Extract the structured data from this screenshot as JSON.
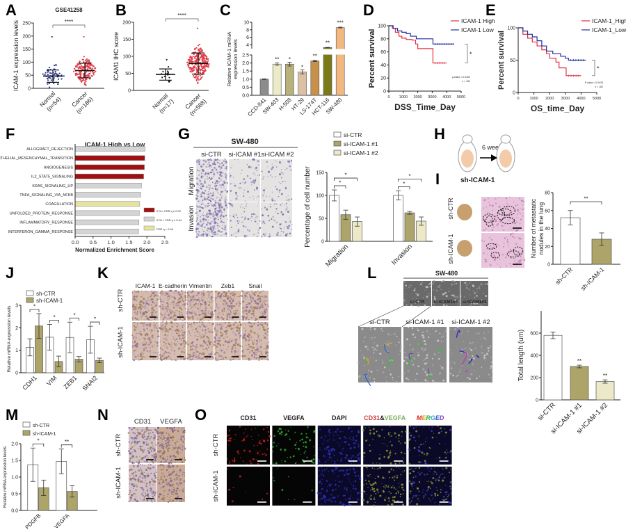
{
  "panels": {
    "A": {
      "label": "A"
    },
    "B": {
      "label": "B"
    },
    "C": {
      "label": "C"
    },
    "D": {
      "label": "D"
    },
    "E": {
      "label": "E"
    },
    "F": {
      "label": "F"
    },
    "G": {
      "label": "G"
    },
    "H": {
      "label": "H"
    },
    "I": {
      "label": "I"
    },
    "J": {
      "label": "J"
    },
    "K": {
      "label": "K"
    },
    "L": {
      "label": "L"
    },
    "M": {
      "label": "M"
    },
    "N": {
      "label": "N"
    },
    "O": {
      "label": "O"
    }
  },
  "images": {
    "G": {
      "title": "SW-480",
      "columns": [
        "si-CTR",
        "si-ICAM #1",
        "si-ICAM #2"
      ],
      "rows": [
        "Migration",
        "Invasion"
      ]
    },
    "H": {
      "duration": "6 week",
      "caption": "sh-ICAM-1"
    },
    "I": {
      "rows": [
        "sh-CTR",
        "sh-ICAM-1"
      ]
    },
    "K": {
      "columns": [
        "ICAM-1",
        "E-cadherin",
        "Vimentin",
        "Zeb1",
        "Snail"
      ],
      "rows": [
        "sh-CTR",
        "sh-ICAM-1"
      ]
    },
    "L": {
      "title": "SW-480",
      "thumb_labels": [
        "si-CTR",
        "si-ICAM1#1",
        "si-ICAM1#2"
      ],
      "columns": [
        "si-CTR",
        "si-ICAM-1 #1",
        "si-ICAM-1 #2"
      ]
    },
    "N": {
      "columns": [
        "CD31",
        "VEGFA"
      ],
      "rows": [
        "sh-CTR",
        "sh-ICAM-1"
      ]
    },
    "O": {
      "columns": [
        "CD31",
        "VEGFA",
        "DAPI",
        "CD31&VEGFA",
        "MERGED"
      ],
      "header_colors": [
        "#d23a3a",
        "#7ab060",
        "#5560b0",
        "#d23a3a",
        "#e04040"
      ],
      "rows": [
        "sh-CTR",
        "sh-ICAM-1"
      ]
    }
  },
  "chart_data": [
    {
      "id": "A",
      "type": "scatter",
      "title": "GSE41258",
      "ylabel": "ICAM-1 expression levels",
      "ylim": [
        0,
        250
      ],
      "yticks": [
        0,
        50,
        100,
        150,
        200,
        250
      ],
      "categories": [
        "Normal",
        "Cancer"
      ],
      "n_labels": [
        "(n=54)",
        "(n=186)"
      ],
      "mean": [
        47,
        68
      ],
      "sd_range": [
        [
          23,
          70
        ],
        [
          40,
          96
        ]
      ],
      "max": [
        197,
        197
      ],
      "significance": "****",
      "colors": [
        "#2c3a9c",
        "#e0404c"
      ]
    },
    {
      "id": "B",
      "type": "scatter",
      "title": "",
      "ylabel": "ICAM1 IHC score",
      "ylim": [
        0,
        200
      ],
      "yticks": [
        0,
        50,
        100,
        150,
        200
      ],
      "categories": [
        "Normal",
        "Cancer"
      ],
      "n_labels": [
        "(n=17)",
        "(n=588)"
      ],
      "mean": [
        47,
        79
      ],
      "sd_range": [
        [
          30,
          63
        ],
        [
          48,
          110
        ]
      ],
      "max": [
        90,
        182
      ],
      "significance": "****",
      "colors": [
        "#222222",
        "#e0404c"
      ]
    },
    {
      "id": "C",
      "type": "bar",
      "ylabel": "Relative ICAM-1 mRNA expression levels",
      "ylim": [
        0,
        10
      ],
      "axis_break": [
        2.5,
        3
      ],
      "yticks_lower": [
        "0.0",
        "0.5",
        "1.0",
        "1.5",
        "2.0",
        "2.5"
      ],
      "yticks_upper": [
        "4",
        "6",
        "8",
        "10"
      ],
      "categories": [
        "CCD-841",
        "SW-403",
        "H-508",
        "HT-29",
        "LS-174T",
        "HCT-116",
        "SW-480"
      ],
      "values": [
        1.0,
        1.93,
        1.93,
        1.45,
        2.13,
        3.3,
        8.6
      ],
      "errors": [
        0.02,
        0.07,
        0.12,
        0.12,
        0.04,
        0.05,
        0.12
      ],
      "significance": [
        "",
        "**",
        "*",
        "*",
        "**",
        "**",
        "***"
      ],
      "colors": [
        "#8c8c8c",
        "#ecebc8",
        "#b8b27a",
        "#dcc0a4",
        "#c89048",
        "#7c7a18",
        "#f2b880"
      ]
    },
    {
      "id": "D",
      "type": "line",
      "xlabel": "DSS_Time_Day",
      "ylabel": "Percent survival",
      "xlim": [
        0,
        5000
      ],
      "ylim": [
        0,
        100
      ],
      "xticks": [
        0,
        1000,
        2000,
        3000,
        4000,
        5000
      ],
      "yticks": [
        0,
        20,
        40,
        60,
        80,
        100
      ],
      "legend": "top-right",
      "significance": "*",
      "annotation": [
        "p-value = 0.0402",
        "n = 162"
      ],
      "series": [
        {
          "name": "ICAM-1 High",
          "color": "#e0303c",
          "points": [
            [
              0,
              100
            ],
            [
              250,
              96
            ],
            [
              450,
              90
            ],
            [
              700,
              84
            ],
            [
              900,
              81
            ],
            [
              1200,
              79
            ],
            [
              1600,
              78
            ],
            [
              1850,
              72
            ],
            [
              2000,
              65
            ],
            [
              3050,
              65
            ],
            [
              3050,
              43
            ],
            [
              4000,
              43
            ]
          ]
        },
        {
          "name": "ICAM-1 Low",
          "color": "#1f2f9c",
          "points": [
            [
              0,
              100
            ],
            [
              300,
              96
            ],
            [
              600,
              92
            ],
            [
              900,
              90
            ],
            [
              1200,
              88
            ],
            [
              1500,
              84
            ],
            [
              1900,
              80
            ],
            [
              3050,
              80
            ],
            [
              3050,
              72
            ],
            [
              4500,
              72
            ]
          ]
        }
      ]
    },
    {
      "id": "E",
      "type": "line",
      "xlabel": "OS_time_Day",
      "ylabel": "Percent survival",
      "xlim": [
        0,
        5000
      ],
      "ylim": [
        0,
        100
      ],
      "xticks": [
        0,
        1000,
        2000,
        3000,
        4000,
        5000
      ],
      "yticks": [
        0,
        50,
        100
      ],
      "legend": "top-right",
      "significance": "*",
      "annotation": [
        "P value = 0.0433",
        "n = 162"
      ],
      "series": [
        {
          "name": "ICAM-1_High",
          "color": "#e0303c",
          "points": [
            [
              0,
              100
            ],
            [
              300,
              90
            ],
            [
              600,
              84
            ],
            [
              900,
              78
            ],
            [
              1200,
              72
            ],
            [
              1500,
              66
            ],
            [
              1800,
              60
            ],
            [
              2000,
              53
            ],
            [
              2400,
              47
            ],
            [
              2600,
              38
            ],
            [
              3050,
              38
            ],
            [
              3050,
              26
            ],
            [
              4000,
              26
            ]
          ]
        },
        {
          "name": "ICAM-1_Low",
          "color": "#1f2f9c",
          "points": [
            [
              0,
              100
            ],
            [
              300,
              95
            ],
            [
              600,
              90
            ],
            [
              900,
              86
            ],
            [
              1200,
              80
            ],
            [
              1500,
              72
            ],
            [
              1800,
              64
            ],
            [
              2200,
              60
            ],
            [
              2700,
              56
            ],
            [
              3000,
              53
            ],
            [
              3200,
              50
            ],
            [
              4300,
              50
            ]
          ]
        }
      ]
    },
    {
      "id": "F",
      "type": "bar",
      "orientation": "horizontal",
      "title": "ICAM-1 High vs Low",
      "xlabel": "Normalized Enrichment Score",
      "xlim": [
        0,
        2.5
      ],
      "xticks": [
        "0.0",
        "0.5",
        "1.0",
        "1.5",
        "2.0",
        "2.5"
      ],
      "categories": [
        "ALLOGRAFT_REJECTION",
        "EPITHELIAL_MESENCHYMAL_TRANSITION",
        "ANGIOGENESIS",
        "IL2_STAT5_SIGNALING",
        "KRAS_SIGNALING_UP",
        "TNFA_SIGNALING_VIA_NFKB",
        "COAGULATION",
        "UNFOLDED_PROTEIN_RESPONSE",
        "INFLAMMATORY_RESPONSE",
        "INTERFERON_GAMMA_RESPONSE"
      ],
      "values": [
        1.95,
        1.94,
        1.93,
        1.91,
        1.85,
        1.83,
        1.8,
        1.79,
        1.78,
        1.77
      ],
      "fdr_class": [
        1,
        0,
        0,
        0,
        1,
        1,
        2,
        1,
        1,
        1
      ],
      "legend": [
        {
          "name": "0.01< FDR q ≤ 0.02",
          "color": "#a01010"
        },
        {
          "name": "0.03 < FDR q ≤ 0.04",
          "color": "#d4d4d4"
        },
        {
          "name": "FDR q > 0.04",
          "color": "#e6e2a0"
        }
      ]
    },
    {
      "id": "G",
      "type": "bar",
      "ylabel": "Percentage of cell number",
      "ylim": [
        0,
        150
      ],
      "yticks": [
        0,
        50,
        100,
        150
      ],
      "categories": [
        "Migration",
        "Invasion"
      ],
      "series": [
        {
          "name": "si-CTR",
          "color": "#ffffff",
          "values": [
            100,
            100
          ],
          "errors": [
            12,
            10
          ]
        },
        {
          "name": "si-ICAM-1 #1",
          "color": "#aca468",
          "values": [
            58,
            62
          ],
          "errors": [
            10,
            3
          ]
        },
        {
          "name": "si-ICAM-1 #2",
          "color": "#ece9c8",
          "values": [
            43,
            44
          ],
          "errors": [
            10,
            9
          ]
        }
      ],
      "significance": [
        [
          "*",
          "*"
        ],
        [
          "*",
          "*"
        ]
      ],
      "legend": "top"
    },
    {
      "id": "I",
      "type": "bar",
      "ylabel": "Number of metastatic nodules in the lung",
      "ylim": [
        0,
        80
      ],
      "yticks": [
        0,
        20,
        40,
        60,
        80
      ],
      "categories": [
        "sh-CTR",
        "sh-ICAM-1"
      ],
      "values": [
        52,
        28
      ],
      "errors": [
        8,
        7
      ],
      "colors": [
        "#ffffff",
        "#aca468"
      ],
      "significance": "**"
    },
    {
      "id": "J",
      "type": "bar",
      "ylabel": "Relative mRNA expression levels",
      "ylim": [
        0,
        3
      ],
      "yticks": [
        0,
        1,
        2,
        3
      ],
      "categories": [
        "CDH1",
        "VIM",
        "ZEB1",
        "SNAI2"
      ],
      "series": [
        {
          "name": "sh-CTR",
          "color": "#ffffff",
          "values": [
            1.13,
            1.58,
            1.57,
            1.47
          ],
          "errors": [
            0.38,
            0.57,
            0.68,
            0.6
          ]
        },
        {
          "name": "sh-ICAM-1",
          "color": "#aca468",
          "values": [
            2.08,
            0.5,
            0.6,
            0.55
          ],
          "errors": [
            0.55,
            0.24,
            0.12,
            0.1
          ]
        }
      ],
      "significance": [
        "*",
        "*",
        "*",
        "*"
      ],
      "legend": "top-left"
    },
    {
      "id": "L",
      "type": "bar",
      "ylabel": "Total length (um)",
      "ylim": [
        0,
        800
      ],
      "yticks": [
        0,
        200,
        400,
        600
      ],
      "categories": [
        "si-CTR",
        "si-ICAM-1 #1",
        "si-ICAM-1 #2"
      ],
      "values": [
        580,
        300,
        165
      ],
      "errors": [
        30,
        12,
        15
      ],
      "colors": [
        "#ffffff",
        "#aca468",
        "#ece9c8"
      ],
      "significance": [
        "",
        "**",
        "**"
      ]
    },
    {
      "id": "M",
      "type": "bar",
      "ylabel": "Relative mRNA expression levels",
      "ylim": [
        0,
        2
      ],
      "yticks": [
        "0.0",
        "0.5",
        "1.0",
        "1.5",
        "2.0"
      ],
      "categories": [
        "PDGFB",
        "VEGFA"
      ],
      "series": [
        {
          "name": "sh-CTR",
          "color": "#ffffff",
          "values": [
            1.37,
            1.47
          ],
          "errors": [
            0.5,
            0.37
          ]
        },
        {
          "name": "sh-ICAM-1",
          "color": "#aca468",
          "values": [
            0.68,
            0.57
          ],
          "errors": [
            0.23,
            0.17
          ]
        }
      ],
      "significance": [
        "*",
        "**"
      ],
      "legend": "top-left"
    }
  ]
}
